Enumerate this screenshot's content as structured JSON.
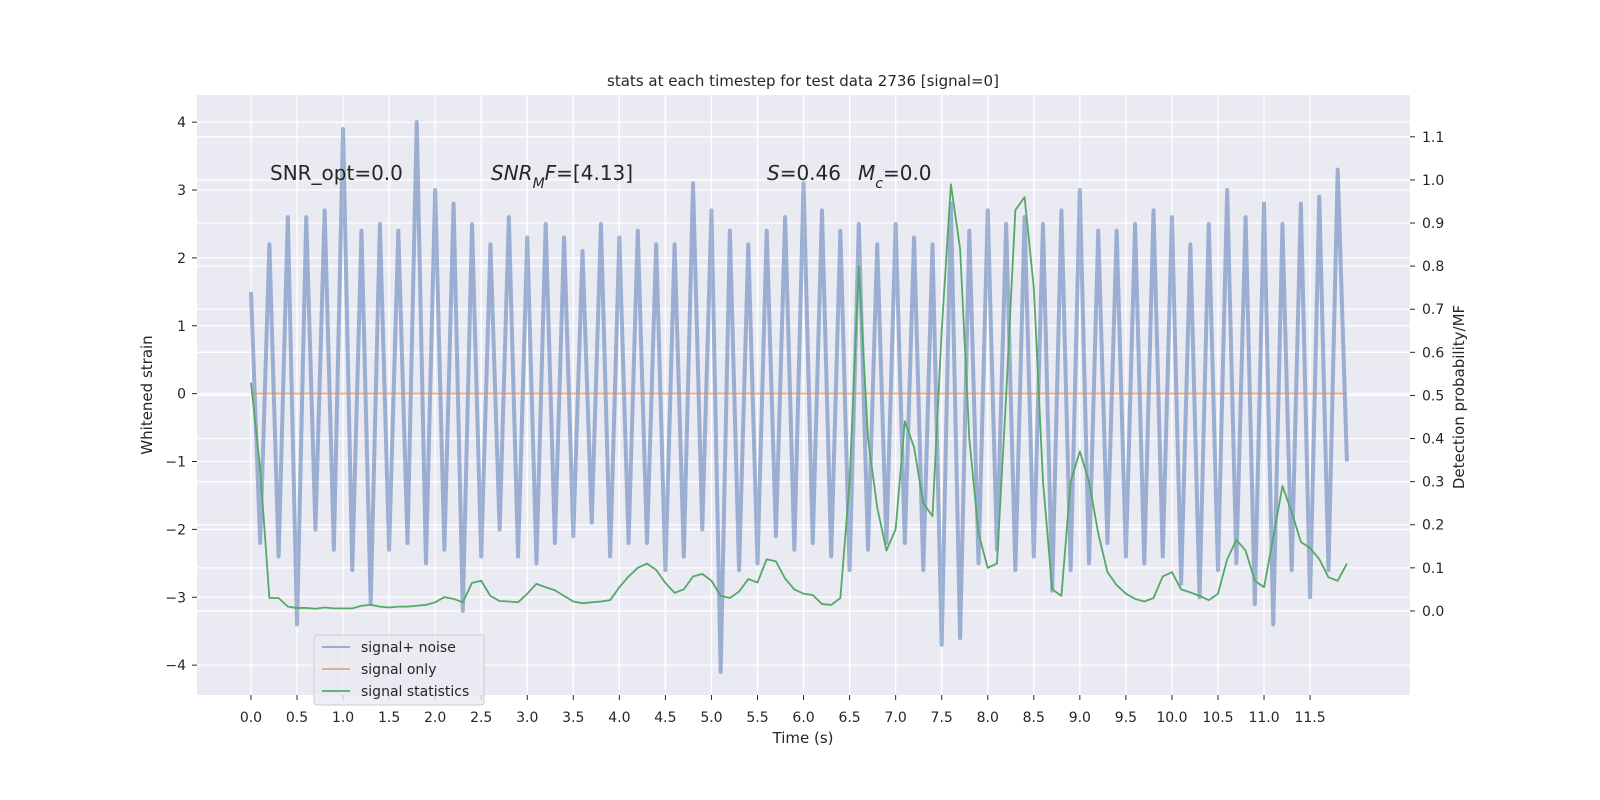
{
  "chart_data": {
    "type": "line",
    "title": "stats at each timestep for test data 2736 [signal=0]",
    "xlabel": "Time (s)",
    "ylabel": "Whitened strain",
    "y2label": "Detection probability/MF",
    "annotations": [
      {
        "segments": [
          {
            "text": "SNR_opt=0.0",
            "italic": false,
            "sub": false
          }
        ]
      },
      {
        "segments": [
          {
            "text": "SNR",
            "italic": true,
            "sub": false
          },
          {
            "text": "M",
            "italic": true,
            "sub": true
          },
          {
            "text": "F",
            "italic": true,
            "sub": false
          },
          {
            "text": "=[4.13]",
            "italic": false,
            "sub": false
          }
        ]
      },
      {
        "segments": [
          {
            "text": "S",
            "italic": true,
            "sub": false
          },
          {
            "text": "=0.46",
            "italic": false,
            "sub": false
          }
        ]
      },
      {
        "segments": [
          {
            "text": "M",
            "italic": true,
            "sub": false
          },
          {
            "text": "c",
            "italic": true,
            "sub": true
          },
          {
            "text": "=0.0",
            "italic": false,
            "sub": false
          }
        ]
      }
    ],
    "x": [
      0,
      0.1,
      0.2,
      0.3,
      0.4,
      0.5,
      0.6,
      0.7,
      0.8,
      0.9,
      1.0,
      1.1,
      1.2,
      1.3,
      1.4,
      1.5,
      1.6,
      1.7,
      1.8,
      1.9,
      2.0,
      2.1,
      2.2,
      2.3,
      2.4,
      2.5,
      2.6,
      2.7,
      2.8,
      2.9,
      3.0,
      3.1,
      3.2,
      3.3,
      3.4,
      3.5,
      3.6,
      3.7,
      3.8,
      3.9,
      4.0,
      4.1,
      4.2,
      4.3,
      4.4,
      4.5,
      4.6,
      4.7,
      4.8,
      4.9,
      5.0,
      5.1,
      5.2,
      5.3,
      5.4,
      5.5,
      5.6,
      5.7,
      5.8,
      5.9,
      6.0,
      6.1,
      6.2,
      6.3,
      6.4,
      6.5,
      6.6,
      6.7,
      6.8,
      6.9,
      7.0,
      7.1,
      7.2,
      7.3,
      7.4,
      7.5,
      7.6,
      7.7,
      7.8,
      7.9,
      8.0,
      8.1,
      8.2,
      8.3,
      8.4,
      8.5,
      8.6,
      8.7,
      8.8,
      8.9,
      9.0,
      9.1,
      9.2,
      9.3,
      9.4,
      9.5,
      9.6,
      9.7,
      9.8,
      9.9,
      10.0,
      10.1,
      10.2,
      10.3,
      10.4,
      10.5,
      10.6,
      10.7,
      10.8,
      10.9,
      11.0,
      11.1,
      11.2,
      11.3,
      11.4,
      11.5,
      11.6,
      11.7,
      11.8,
      11.9
    ],
    "series": [
      {
        "name": "signal+ noise",
        "color": "#4c72b0",
        "axis": "y",
        "values": [
          1.5,
          -2.2,
          2.2,
          -2.4,
          2.6,
          -3.4,
          2.6,
          -2.0,
          2.7,
          -2.3,
          3.9,
          -2.6,
          2.4,
          -3.1,
          2.5,
          -2.3,
          2.4,
          -2.2,
          4.0,
          -2.5,
          3.0,
          -2.3,
          2.8,
          -3.2,
          2.5,
          -2.4,
          2.2,
          -2.0,
          2.6,
          -2.4,
          2.3,
          -2.5,
          2.5,
          -2.2,
          2.3,
          -2.1,
          2.1,
          -1.9,
          2.5,
          -2.4,
          2.3,
          -2.2,
          2.4,
          -2.2,
          2.2,
          -2.6,
          2.2,
          -2.4,
          3.1,
          -2.0,
          2.7,
          -4.1,
          2.4,
          -2.6,
          2.2,
          -2.5,
          2.4,
          -2.1,
          2.6,
          -2.3,
          3.1,
          -2.2,
          2.7,
          -2.4,
          2.4,
          -2.6,
          2.5,
          -2.3,
          2.2,
          -2.2,
          2.5,
          -2.2,
          2.3,
          -2.6,
          2.2,
          -3.7,
          2.8,
          -3.6,
          2.4,
          -2.5,
          2.7,
          -2.3,
          2.5,
          -2.6,
          2.6,
          -2.4,
          2.5,
          -2.9,
          2.7,
          -2.6,
          3.0,
          -2.5,
          2.4,
          -2.2,
          2.4,
          -2.4,
          2.5,
          -2.5,
          2.7,
          -2.4,
          2.6,
          -2.8,
          2.2,
          -3.0,
          2.5,
          -2.6,
          3.0,
          -2.5,
          2.6,
          -3.1,
          2.8,
          -3.4,
          2.5,
          -2.6,
          2.8,
          -3.0,
          2.9,
          -2.6,
          3.3,
          -1.0
        ]
      },
      {
        "name": "signal only",
        "color": "#dd8452",
        "axis": "y",
        "values": [
          0,
          0,
          0,
          0,
          0,
          0,
          0,
          0,
          0,
          0,
          0,
          0,
          0,
          0,
          0,
          0,
          0,
          0,
          0,
          0,
          0,
          0,
          0,
          0,
          0,
          0,
          0,
          0,
          0,
          0,
          0,
          0,
          0,
          0,
          0,
          0,
          0,
          0,
          0,
          0,
          0,
          0,
          0,
          0,
          0,
          0,
          0,
          0,
          0,
          0,
          0,
          0,
          0,
          0,
          0,
          0,
          0,
          0,
          0,
          0,
          0,
          0,
          0,
          0,
          0,
          0,
          0,
          0,
          0,
          0,
          0,
          0,
          0,
          0,
          0,
          0,
          0,
          0,
          0,
          0,
          0,
          0,
          0,
          0,
          0,
          0,
          0,
          0,
          0,
          0,
          0,
          0,
          0,
          0,
          0,
          0,
          0,
          0,
          0,
          0,
          0,
          0,
          0,
          0,
          0,
          0,
          0,
          0,
          0,
          0,
          0,
          0,
          0,
          0,
          0,
          0,
          0,
          0,
          0,
          0
        ]
      },
      {
        "name": "signal statistics",
        "color": "#55a868",
        "axis": "y2",
        "values": [
          0.53,
          0.33,
          0.03,
          0.03,
          0.01,
          0.007,
          0.007,
          0.005,
          0.008,
          0.006,
          0.006,
          0.006,
          0.012,
          0.014,
          0.01,
          0.008,
          0.01,
          0.01,
          0.012,
          0.014,
          0.02,
          0.032,
          0.028,
          0.02,
          0.065,
          0.07,
          0.035,
          0.023,
          0.022,
          0.02,
          0.04,
          0.063,
          0.055,
          0.048,
          0.035,
          0.022,
          0.018,
          0.02,
          0.022,
          0.025,
          0.055,
          0.08,
          0.1,
          0.11,
          0.095,
          0.065,
          0.042,
          0.05,
          0.08,
          0.086,
          0.07,
          0.035,
          0.03,
          0.045,
          0.074,
          0.066,
          0.12,
          0.115,
          0.075,
          0.05,
          0.04,
          0.037,
          0.016,
          0.014,
          0.03,
          0.3,
          0.8,
          0.4,
          0.24,
          0.14,
          0.19,
          0.44,
          0.38,
          0.25,
          0.22,
          0.65,
          0.99,
          0.84,
          0.4,
          0.18,
          0.1,
          0.11,
          0.5,
          0.93,
          0.96,
          0.75,
          0.3,
          0.05,
          0.035,
          0.3,
          0.37,
          0.3,
          0.18,
          0.09,
          0.06,
          0.04,
          0.028,
          0.022,
          0.03,
          0.08,
          0.09,
          0.05,
          0.043,
          0.035,
          0.025,
          0.04,
          0.12,
          0.165,
          0.14,
          0.07,
          0.055,
          0.17,
          0.29,
          0.23,
          0.16,
          0.146,
          0.12,
          0.078,
          0.07,
          0.11
        ]
      }
    ],
    "xlim": [
      -0.586,
      12.585
    ],
    "ylim": [
      -4.44,
      4.4
    ],
    "y2lim": [
      -0.195,
      1.197
    ],
    "xticks": [
      {
        "value": 0,
        "label": "0.0"
      },
      0.5,
      {
        "value": 1,
        "label": "1.0"
      },
      1.5,
      {
        "value": 2,
        "label": "2.0"
      },
      2.5,
      {
        "value": 3,
        "label": "3.0"
      },
      3.5,
      {
        "value": 4,
        "label": "4.0"
      },
      4.5,
      {
        "value": 5,
        "label": "5.0"
      },
      5.5,
      {
        "value": 6,
        "label": "6.0"
      },
      6.5,
      {
        "value": 7,
        "label": "7.0"
      },
      7.5,
      {
        "value": 8,
        "label": "8.0"
      },
      8.5,
      {
        "value": 9,
        "label": "9.0"
      },
      9.5,
      {
        "value": 10,
        "label": "10.0"
      },
      10.5,
      {
        "value": 11,
        "label": "11.0"
      },
      11.5
    ],
    "yticks": [
      {
        "value": -4,
        "label": "−4"
      },
      {
        "value": -3,
        "label": "−3"
      },
      {
        "value": -2,
        "label": "−2"
      },
      {
        "value": -1,
        "label": "−1"
      },
      0,
      1,
      2,
      3,
      4
    ],
    "y2ticks": [
      {
        "value": 0,
        "label": "0.0"
      },
      0.1,
      0.2,
      0.3,
      0.4,
      0.5,
      0.6,
      0.7,
      0.8,
      0.9,
      {
        "value": 1,
        "label": "1.0"
      },
      1.1
    ],
    "grid": true,
    "legend": "lower left"
  }
}
